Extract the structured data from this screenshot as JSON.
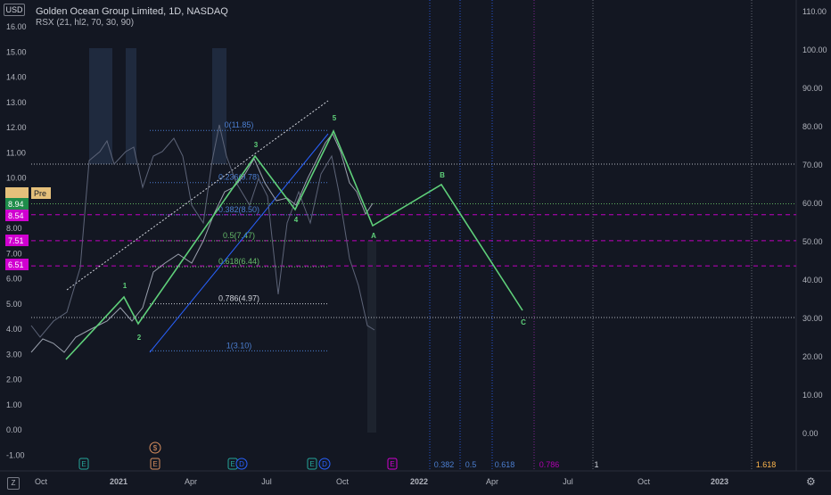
{
  "header": {
    "title": "Golden Ocean Group Limited, 1D, NASDAQ",
    "indicator": "RSX (21, hl2, 70, 30, 90)",
    "currency": "USD"
  },
  "chart_data": {
    "type": "line",
    "price_axis": {
      "ticks": [
        "16.00",
        "15.00",
        "14.00",
        "13.00",
        "12.00",
        "11.00",
        "10.00",
        "9.00",
        "8.00",
        "7.00",
        "6.00",
        "5.00",
        "4.00",
        "3.00",
        "2.00",
        "1.00",
        "0.00",
        "-1.00"
      ],
      "range": [
        -1.0,
        17.0
      ]
    },
    "rsx_axis": {
      "ticks": [
        "110.00",
        "100.00",
        "90.00",
        "80.00",
        "70.00",
        "60.00",
        "50.00",
        "40.00",
        "30.00",
        "20.00",
        "10.00",
        "0.00"
      ],
      "range": [
        -7,
        111
      ],
      "levels": [
        70,
        30
      ]
    },
    "time_axis": {
      "ticks": [
        "Oct",
        "2021",
        "Apr",
        "Jul",
        "Oct",
        "2022",
        "Apr",
        "Jul",
        "Oct",
        "2023"
      ],
      "bold": [
        "2021",
        "2022",
        "2023"
      ]
    },
    "price_badges": [
      {
        "text": "8.94",
        "color": "#1e8c4a",
        "text_color": "#ffffff",
        "price": 8.94
      },
      {
        "text": "8.94",
        "color": "#1e8c4a",
        "text_color": "#ffffff",
        "price": 8.94
      },
      {
        "text": "Pre",
        "color": "#e5c07b",
        "text_color": "#131722",
        "price": 8.94
      },
      {
        "text": "8.54",
        "color": "#d000d0",
        "text_color": "#ffffff",
        "price": 8.54
      },
      {
        "text": "7.51",
        "color": "#d000d0",
        "text_color": "#ffffff",
        "price": 7.51
      },
      {
        "text": "6.51",
        "color": "#d000d0",
        "text_color": "#ffffff",
        "price": 6.51
      }
    ],
    "fib_levels": [
      {
        "ratio": "0",
        "price": 11.85,
        "color": "#4c7fd1"
      },
      {
        "ratio": "0.236",
        "price": 9.78,
        "color": "#4c7fd1"
      },
      {
        "ratio": "0.382",
        "price": 8.5,
        "color": "#4c7fd1"
      },
      {
        "ratio": "0.5",
        "price": 7.47,
        "color": "#66bb6a"
      },
      {
        "ratio": "0.618",
        "price": 6.44,
        "color": "#66bb6a"
      },
      {
        "ratio": "0.786",
        "price": 4.97,
        "color": "#d1d4dc"
      },
      {
        "ratio": "1",
        "price": 3.1,
        "color": "#4c7fd1"
      }
    ],
    "wave_points": [
      {
        "label": "1",
        "x": "2020-12-08",
        "y": 5.5
      },
      {
        "label": "2",
        "x": "2021-01-08",
        "y": 4.2
      },
      {
        "label": "3",
        "x": "2021-06-14",
        "y": 11.0
      },
      {
        "label": "4",
        "x": "2021-07-26",
        "y": 8.6
      },
      {
        "label": "5",
        "x": "2021-09-10",
        "y": 11.85
      },
      {
        "label": "A",
        "x": "2021-11-01",
        "y": 8.0
      },
      {
        "label": "B",
        "x": "2022-01-15",
        "y": 9.6
      },
      {
        "label": "C",
        "x": "2022-04-20",
        "y": 4.9
      }
    ],
    "wave_start": {
      "x": "2020-10-05",
      "y": 3.0
    },
    "time_fib_labels": [
      {
        "text": "0.382",
        "color": "#4c7fd1"
      },
      {
        "text": "0.5",
        "color": "#4c7fd1"
      },
      {
        "text": "0.618",
        "color": "#4c7fd1"
      },
      {
        "text": "0.786",
        "color": "#b000b0"
      },
      {
        "text": "1",
        "color": "#d1d4dc"
      },
      {
        "text": "1.618",
        "color": "#ffb74d"
      }
    ],
    "event_markers": [
      {
        "text": "E",
        "color": "#26a69a"
      },
      {
        "text": "E",
        "color": "#d98f5f"
      },
      {
        "text": "$",
        "color": "#d98f5f"
      },
      {
        "text": "E",
        "color": "#26a69a"
      },
      {
        "text": "D",
        "color": "#2962ff"
      },
      {
        "text": "E",
        "color": "#26a69a"
      },
      {
        "text": "D",
        "color": "#2962ff"
      },
      {
        "text": "E",
        "color": "#d000d0"
      }
    ],
    "rsx_levels": [
      70,
      30
    ]
  }
}
